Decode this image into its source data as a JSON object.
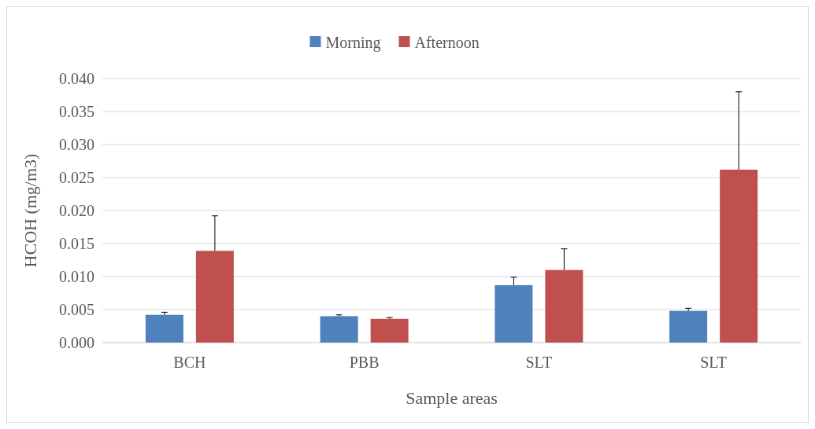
{
  "chart_data": {
    "type": "bar",
    "xlabel": "Sample areas",
    "ylabel": "HCOH (mg/m3)",
    "categories": [
      "BCH",
      "PBB",
      "SLT",
      "SLT"
    ],
    "series": [
      {
        "name": "Morning",
        "color": "#4f81bd",
        "values": [
          0.0042,
          0.004,
          0.0087,
          0.0048
        ],
        "errors": [
          [
            0.0042,
            0.0046
          ],
          [
            0.004,
            0.0042
          ],
          [
            0.0087,
            0.0099
          ],
          [
            0.0048,
            0.0052
          ]
        ]
      },
      {
        "name": "Afternoon",
        "color": "#c0504d",
        "values": [
          0.0139,
          0.0036,
          0.011,
          0.0262
        ],
        "errors": [
          [
            0.0139,
            0.0192
          ],
          [
            0.0036,
            0.0038
          ],
          [
            0.011,
            0.0142
          ],
          [
            0.0262,
            0.038
          ]
        ]
      }
    ],
    "ylim": [
      0,
      0.04
    ],
    "yticks": [
      {
        "value": 0,
        "label": "0.000"
      },
      {
        "value": 0.005,
        "label": "0.005"
      },
      {
        "value": 0.01,
        "label": "0.010"
      },
      {
        "value": 0.015,
        "label": "0.015"
      },
      {
        "value": 0.02,
        "label": "0.020"
      },
      {
        "value": 0.025,
        "label": "0.025"
      },
      {
        "value": 0.03,
        "label": "0.030"
      },
      {
        "value": 0.035,
        "label": "0.035"
      },
      {
        "value": 0.04,
        "label": "0.040"
      }
    ],
    "grid": "y",
    "legend": "top"
  }
}
